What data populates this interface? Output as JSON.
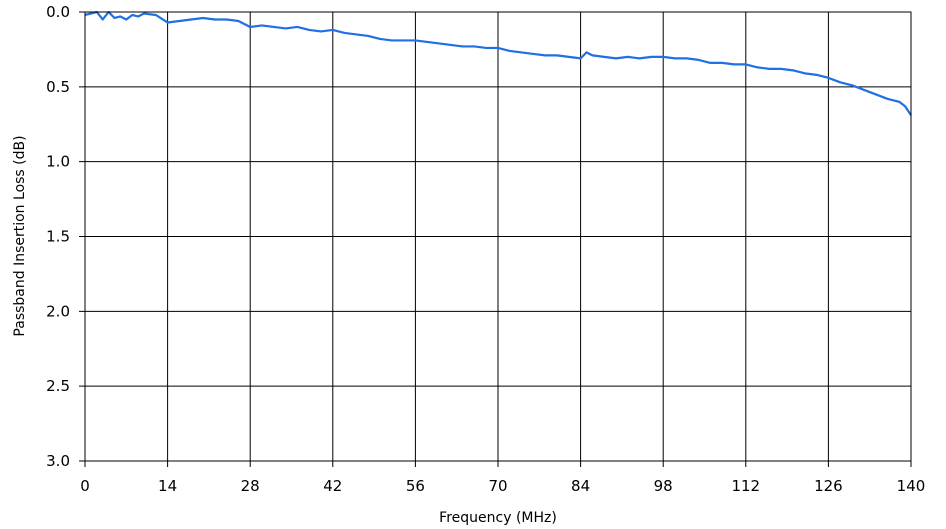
{
  "chart_data": {
    "type": "line",
    "title": "",
    "xlabel": "Frequency (MHz)",
    "ylabel": "Passband Insertion Loss (dB)",
    "xlim": [
      0,
      140
    ],
    "ylim": [
      0,
      3.0
    ],
    "y_inverted": true,
    "grid": true,
    "legend": "none",
    "x_ticks": [
      "0",
      "14",
      "28",
      "42",
      "56",
      "70",
      "84",
      "98",
      "112",
      "126",
      "140"
    ],
    "y_ticks": [
      "0.0",
      "0.5",
      "1.0",
      "1.5",
      "2.0",
      "2.5",
      "3.0"
    ],
    "series": [
      {
        "color": "#1f6fe5",
        "x": [
          0,
          1,
          2,
          3,
          4,
          5,
          6,
          7,
          8,
          9,
          10,
          12,
          14,
          16,
          18,
          20,
          22,
          24,
          26,
          28,
          30,
          32,
          34,
          36,
          38,
          40,
          42,
          44,
          46,
          48,
          50,
          52,
          54,
          56,
          58,
          60,
          62,
          64,
          66,
          68,
          70,
          72,
          74,
          76,
          78,
          80,
          82,
          84,
          85,
          86,
          88,
          90,
          92,
          94,
          96,
          98,
          100,
          102,
          104,
          106,
          108,
          110,
          112,
          114,
          116,
          118,
          120,
          122,
          124,
          126,
          128,
          130,
          132,
          134,
          136,
          138,
          139,
          140
        ],
        "y": [
          0.02,
          0.01,
          -0.01,
          0.05,
          0.0,
          0.04,
          0.03,
          0.05,
          0.02,
          0.03,
          0.01,
          0.02,
          0.07,
          0.06,
          0.05,
          0.04,
          0.05,
          0.05,
          0.06,
          0.1,
          0.09,
          0.1,
          0.11,
          0.1,
          0.12,
          0.13,
          0.12,
          0.14,
          0.15,
          0.16,
          0.18,
          0.19,
          0.19,
          0.19,
          0.2,
          0.21,
          0.22,
          0.23,
          0.23,
          0.24,
          0.24,
          0.26,
          0.27,
          0.28,
          0.29,
          0.29,
          0.3,
          0.31,
          0.27,
          0.29,
          0.3,
          0.31,
          0.3,
          0.31,
          0.3,
          0.3,
          0.31,
          0.31,
          0.32,
          0.34,
          0.34,
          0.35,
          0.35,
          0.37,
          0.38,
          0.38,
          0.39,
          0.41,
          0.42,
          0.44,
          0.47,
          0.49,
          0.52,
          0.55,
          0.58,
          0.6,
          0.63,
          0.69
        ]
      }
    ]
  }
}
